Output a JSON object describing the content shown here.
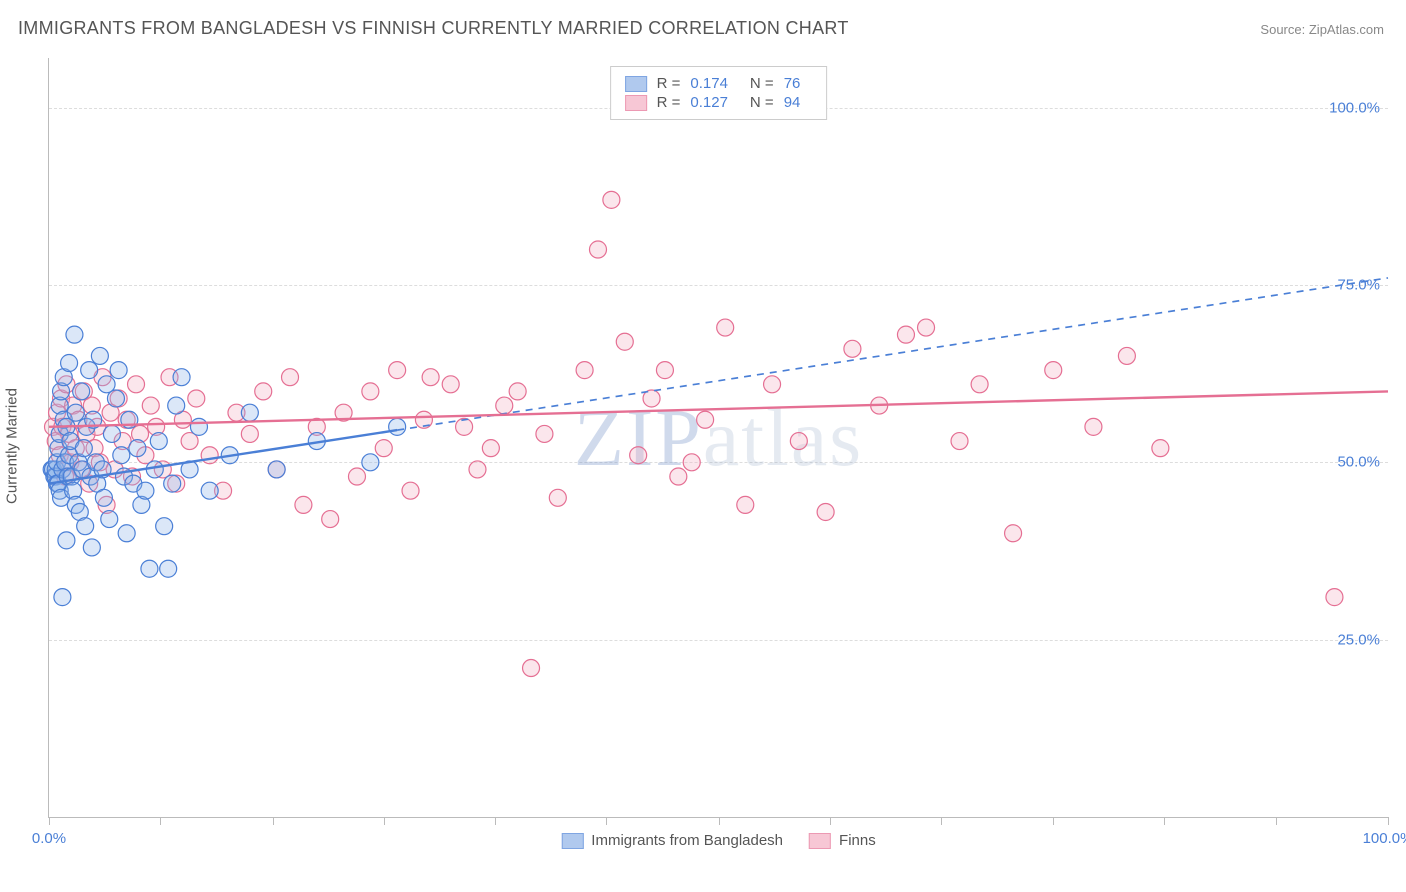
{
  "title": "IMMIGRANTS FROM BANGLADESH VS FINNISH CURRENTLY MARRIED CORRELATION CHART",
  "source_label": "Source:",
  "source_name": "ZipAtlas.com",
  "watermark": "ZIPatlas",
  "ylabel": "Currently Married",
  "chart": {
    "type": "scatter",
    "xlim": [
      0,
      100
    ],
    "ylim": [
      0,
      107
    ],
    "x_tick_positions": [
      0,
      8.3,
      16.7,
      25,
      33.3,
      41.6,
      50,
      58.3,
      66.6,
      75,
      83.3,
      91.6,
      100
    ],
    "x_tick_labels_shown": {
      "0": "0.0%",
      "100": "100.0%"
    },
    "y_gridlines": [
      25,
      50,
      75,
      100
    ],
    "y_tick_labels": {
      "25": "25.0%",
      "50": "50.0%",
      "75": "75.0%",
      "100": "100.0%"
    },
    "background_color": "#ffffff",
    "grid_color": "#dddddd",
    "axis_color": "#bbbbbb",
    "label_color": "#4a7fd6",
    "title_color": "#555555",
    "title_fontsize": 18,
    "label_fontsize": 15,
    "marker_radius": 8.5,
    "marker_stroke_width": 1.2,
    "marker_fill_opacity": 0.32,
    "series": [
      {
        "name": "Immigrants from Bangladesh",
        "color_stroke": "#4a7fd6",
        "color_fill": "#8fb3e8",
        "R": "0.174",
        "N": "76",
        "trend": {
          "x1": 0,
          "y1": 47,
          "x2": 100,
          "y2": 76,
          "dash_after_x": 26,
          "stroke_width": 2.4
        },
        "points": [
          [
            0.2,
            49
          ],
          [
            0.3,
            49
          ],
          [
            0.4,
            48
          ],
          [
            0.5,
            48
          ],
          [
            0.5,
            49
          ],
          [
            0.6,
            47
          ],
          [
            0.6,
            50
          ],
          [
            0.7,
            47
          ],
          [
            0.7,
            52
          ],
          [
            0.8,
            46
          ],
          [
            0.8,
            54
          ],
          [
            0.8,
            58
          ],
          [
            0.9,
            45
          ],
          [
            0.9,
            60
          ],
          [
            1.0,
            49
          ],
          [
            1.0,
            31
          ],
          [
            1.1,
            56
          ],
          [
            1.1,
            62
          ],
          [
            1.2,
            50
          ],
          [
            1.3,
            39
          ],
          [
            1.3,
            55
          ],
          [
            1.4,
            48
          ],
          [
            1.5,
            64
          ],
          [
            1.5,
            51
          ],
          [
            1.6,
            53
          ],
          [
            1.7,
            48
          ],
          [
            1.8,
            46
          ],
          [
            1.9,
            68
          ],
          [
            2.0,
            44
          ],
          [
            2.0,
            57
          ],
          [
            2.2,
            50
          ],
          [
            2.3,
            43
          ],
          [
            2.4,
            60
          ],
          [
            2.5,
            49
          ],
          [
            2.6,
            52
          ],
          [
            2.7,
            41
          ],
          [
            2.8,
            55
          ],
          [
            3.0,
            63
          ],
          [
            3.1,
            48
          ],
          [
            3.2,
            38
          ],
          [
            3.3,
            56
          ],
          [
            3.5,
            50
          ],
          [
            3.6,
            47
          ],
          [
            3.8,
            65
          ],
          [
            4.0,
            49
          ],
          [
            4.1,
            45
          ],
          [
            4.3,
            61
          ],
          [
            4.5,
            42
          ],
          [
            4.7,
            54
          ],
          [
            5.0,
            59
          ],
          [
            5.2,
            63
          ],
          [
            5.4,
            51
          ],
          [
            5.6,
            48
          ],
          [
            5.8,
            40
          ],
          [
            6.0,
            56
          ],
          [
            6.3,
            47
          ],
          [
            6.6,
            52
          ],
          [
            6.9,
            44
          ],
          [
            7.2,
            46
          ],
          [
            7.5,
            35
          ],
          [
            7.9,
            49
          ],
          [
            8.2,
            53
          ],
          [
            8.6,
            41
          ],
          [
            8.9,
            35
          ],
          [
            9.2,
            47
          ],
          [
            9.5,
            58
          ],
          [
            9.9,
            62
          ],
          [
            10.5,
            49
          ],
          [
            11.2,
            55
          ],
          [
            12.0,
            46
          ],
          [
            13.5,
            51
          ],
          [
            15.0,
            57
          ],
          [
            17.0,
            49
          ],
          [
            20.0,
            53
          ],
          [
            24.0,
            50
          ],
          [
            26.0,
            55
          ]
        ]
      },
      {
        "name": "Finns",
        "color_stroke": "#e56f93",
        "color_fill": "#f4b0c4",
        "R": "0.127",
        "N": "94",
        "trend": {
          "x1": 0,
          "y1": 55,
          "x2": 100,
          "y2": 60,
          "dash_after_x": 100,
          "stroke_width": 2.4
        },
        "points": [
          [
            0.3,
            55
          ],
          [
            0.5,
            53
          ],
          [
            0.6,
            57
          ],
          [
            0.8,
            51
          ],
          [
            0.9,
            59
          ],
          [
            1.0,
            55
          ],
          [
            1.2,
            48
          ],
          [
            1.3,
            61
          ],
          [
            1.5,
            54
          ],
          [
            1.6,
            50
          ],
          [
            1.8,
            58
          ],
          [
            2.0,
            52
          ],
          [
            2.2,
            56
          ],
          [
            2.4,
            49
          ],
          [
            2.6,
            60
          ],
          [
            2.8,
            54
          ],
          [
            3.0,
            47
          ],
          [
            3.2,
            58
          ],
          [
            3.4,
            52
          ],
          [
            3.6,
            55
          ],
          [
            3.8,
            50
          ],
          [
            4.0,
            62
          ],
          [
            4.3,
            44
          ],
          [
            4.6,
            57
          ],
          [
            4.9,
            49
          ],
          [
            5.2,
            59
          ],
          [
            5.5,
            53
          ],
          [
            5.8,
            56
          ],
          [
            6.2,
            48
          ],
          [
            6.5,
            61
          ],
          [
            6.8,
            54
          ],
          [
            7.2,
            51
          ],
          [
            7.6,
            58
          ],
          [
            8.0,
            55
          ],
          [
            8.5,
            49
          ],
          [
            9.0,
            62
          ],
          [
            9.5,
            47
          ],
          [
            10.0,
            56
          ],
          [
            10.5,
            53
          ],
          [
            11.0,
            59
          ],
          [
            12.0,
            51
          ],
          [
            13.0,
            46
          ],
          [
            14.0,
            57
          ],
          [
            15.0,
            54
          ],
          [
            16.0,
            60
          ],
          [
            17.0,
            49
          ],
          [
            18.0,
            62
          ],
          [
            19.0,
            44
          ],
          [
            20.0,
            55
          ],
          [
            21.0,
            42
          ],
          [
            22.0,
            57
          ],
          [
            23.0,
            48
          ],
          [
            24.0,
            60
          ],
          [
            25.0,
            52
          ],
          [
            26.0,
            63
          ],
          [
            27.0,
            46
          ],
          [
            28.0,
            56
          ],
          [
            30.0,
            61
          ],
          [
            32.0,
            49
          ],
          [
            34.0,
            58
          ],
          [
            36.0,
            21
          ],
          [
            37.0,
            54
          ],
          [
            38.0,
            45
          ],
          [
            40.0,
            63
          ],
          [
            41.0,
            80
          ],
          [
            42.0,
            87
          ],
          [
            43.0,
            67
          ],
          [
            44.0,
            51
          ],
          [
            45.0,
            59
          ],
          [
            47.0,
            48
          ],
          [
            49.0,
            56
          ],
          [
            50.5,
            69
          ],
          [
            52.0,
            44
          ],
          [
            54.0,
            61
          ],
          [
            56.0,
            53
          ],
          [
            58.0,
            43
          ],
          [
            60.0,
            66
          ],
          [
            62.0,
            58
          ],
          [
            64.0,
            68
          ],
          [
            65.5,
            69
          ],
          [
            68.0,
            53
          ],
          [
            69.5,
            61
          ],
          [
            72.0,
            40
          ],
          [
            75.0,
            63
          ],
          [
            78.0,
            55
          ],
          [
            80.5,
            65
          ],
          [
            83.0,
            52
          ],
          [
            96.0,
            31
          ],
          [
            28.5,
            62
          ],
          [
            31.0,
            55
          ],
          [
            33.0,
            52
          ],
          [
            35.0,
            60
          ],
          [
            46.0,
            63
          ],
          [
            48.0,
            50
          ]
        ]
      }
    ]
  },
  "legend_bottom": [
    {
      "label": "Immigrants from Bangladesh",
      "fill": "#8fb3e8",
      "stroke": "#4a7fd6"
    },
    {
      "label": "Finns",
      "fill": "#f4b0c4",
      "stroke": "#e56f93"
    }
  ]
}
